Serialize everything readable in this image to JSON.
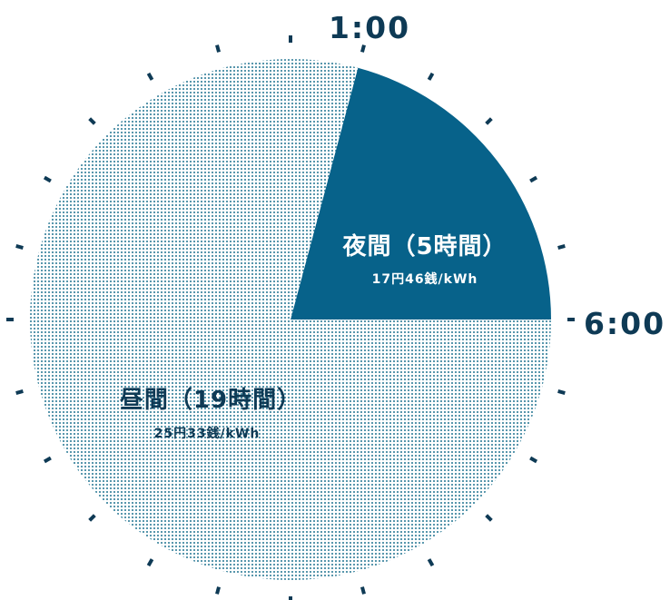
{
  "chart_data": {
    "type": "pie",
    "total_hours": 24,
    "slices": [
      {
        "label": "夜間（5時間）",
        "rate": "17円46銭/kWh",
        "hours": 5,
        "start_hour": 1,
        "end_hour": 6,
        "color": "#07628a",
        "fill": "solid"
      },
      {
        "label": "昼間（19時間）",
        "rate": "25円33銭/kWh",
        "hours": 19,
        "start_hour": 6,
        "end_hour": 1,
        "color": "#2a7a96",
        "fill": "dotted"
      }
    ],
    "hour_labels": [
      {
        "hour": 1,
        "text": "1:00"
      },
      {
        "hour": 6,
        "text": "6:00"
      }
    ],
    "tick_count": 24,
    "tick_color": "#0e3a55",
    "label_color": "#0e3a55",
    "night_text_color": "#ffffff",
    "day_text_color": "#0e3a55"
  }
}
